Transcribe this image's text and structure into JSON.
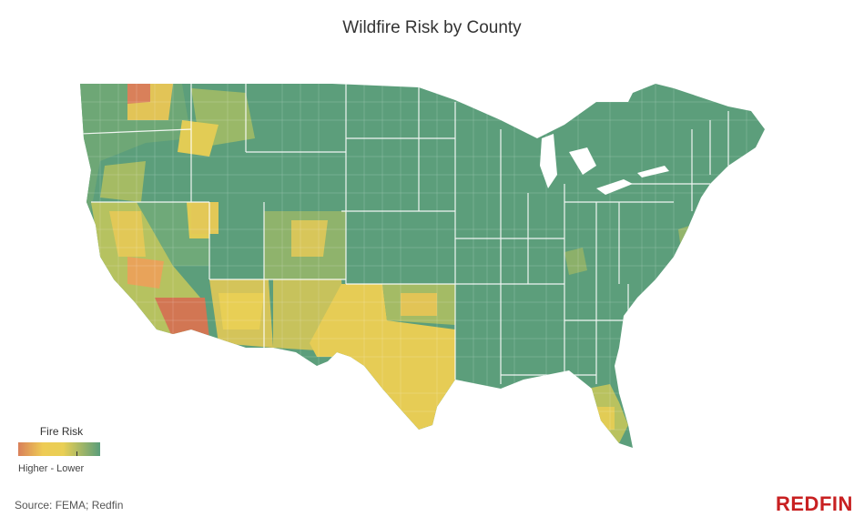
{
  "title": "Wildfire Risk by County",
  "legend": {
    "title": "Fire Risk",
    "range_label": "Higher - Lower",
    "colors": [
      "#d9805a",
      "#eecb55",
      "#5a9d7a"
    ]
  },
  "source": "Source: FEMA; Redfin",
  "brand": {
    "name": "REDFIN",
    "color": "#c82021"
  },
  "colors": {
    "low": "#5a9d7a",
    "low_mid": "#7fae70",
    "mid": "#b6c260",
    "moderate": "#e2cc55",
    "high": "#e8a35a",
    "very_high": "#d27653"
  }
}
